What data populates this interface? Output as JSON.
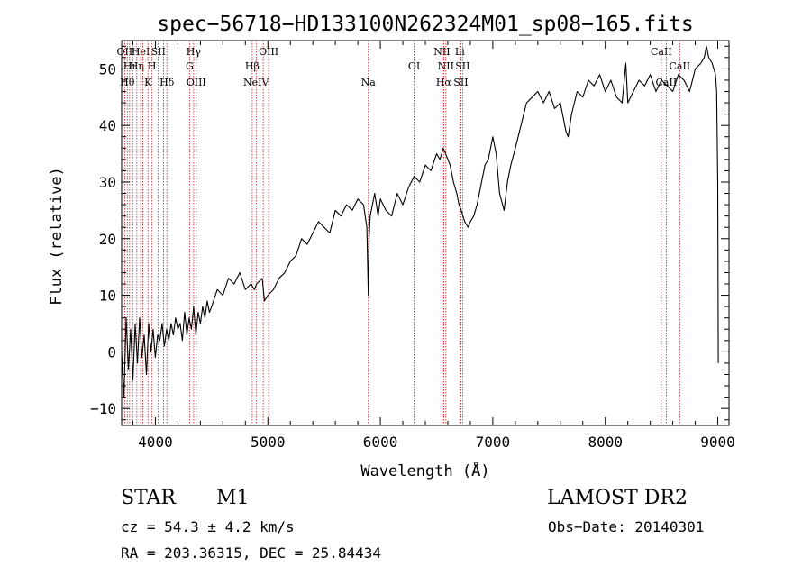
{
  "chart_data": {
    "type": "line",
    "title": "spec−56718−HD133100N262324M01_sp08−165.fits",
    "xlabel": "Wavelength (Å)",
    "ylabel": "Flux (relative)",
    "xlim": [
      3700,
      9100
    ],
    "ylim": [
      -13,
      55
    ],
    "xticks": [
      {
        "value": 4000,
        "label": "4000"
      },
      {
        "value": 5000,
        "label": "5000"
      },
      {
        "value": 6000,
        "label": "6000"
      },
      {
        "value": 7000,
        "label": "7000"
      },
      {
        "value": 8000,
        "label": "8000"
      },
      {
        "value": 9000,
        "label": "9000"
      }
    ],
    "yticks": [
      {
        "value": -10,
        "label": "−10"
      },
      {
        "value": 0,
        "label": "0"
      },
      {
        "value": 10,
        "label": "10"
      },
      {
        "value": 20,
        "label": "20"
      },
      {
        "value": 30,
        "label": "30"
      },
      {
        "value": 40,
        "label": "40"
      },
      {
        "value": 50,
        "label": "50"
      }
    ],
    "grid": false,
    "line_color": "#000000",
    "marker_color": "#8b1a1a",
    "series": [
      {
        "x": [
          3700,
          3720,
          3740,
          3760,
          3780,
          3800,
          3820,
          3840,
          3860,
          3880,
          3900,
          3920,
          3940,
          3960,
          3980,
          4000,
          4020,
          4040,
          4060,
          4080,
          4100,
          4120,
          4140,
          4160,
          4180,
          4200,
          4220,
          4240,
          4260,
          4280,
          4300,
          4320,
          4340,
          4360,
          4380,
          4400,
          4420,
          4440,
          4460,
          4480,
          4500,
          4550,
          4600,
          4650,
          4700,
          4750,
          4800,
          4850,
          4880,
          4900,
          4950,
          4970,
          5000,
          5050,
          5100,
          5150,
          5200,
          5250,
          5300,
          5350,
          5400,
          5450,
          5500,
          5550,
          5600,
          5650,
          5700,
          5750,
          5800,
          5850,
          5880,
          5893,
          5900,
          5910,
          5930,
          5950,
          5980,
          6000,
          6050,
          6100,
          6150,
          6200,
          6250,
          6300,
          6350,
          6400,
          6450,
          6500,
          6530,
          6560,
          6580,
          6600,
          6620,
          6650,
          6680,
          6700,
          6720,
          6750,
          6780,
          6800,
          6830,
          6860,
          6900,
          6930,
          6960,
          7000,
          7030,
          7060,
          7100,
          7130,
          7160,
          7200,
          7250,
          7300,
          7350,
          7400,
          7450,
          7500,
          7550,
          7600,
          7650,
          7670,
          7700,
          7750,
          7800,
          7850,
          7900,
          7950,
          8000,
          8050,
          8100,
          8150,
          8183,
          8200,
          8250,
          8300,
          8350,
          8400,
          8450,
          8500,
          8550,
          8600,
          8650,
          8700,
          8750,
          8800,
          8850,
          8880,
          8900,
          8920,
          8950,
          8980,
          8990,
          9000,
          9005
        ],
        "y": [
          0,
          -8,
          6,
          -3,
          4,
          -5,
          5,
          -2,
          6,
          -1,
          3,
          -4,
          5,
          0,
          4,
          -1,
          3,
          2,
          5,
          1,
          4,
          2,
          5,
          3,
          6,
          4,
          5,
          2,
          7,
          3,
          6,
          4,
          8,
          3,
          7,
          5,
          8,
          6,
          9,
          7,
          8,
          11,
          10,
          13,
          12,
          14,
          11,
          12,
          11,
          12,
          13,
          9,
          10,
          11,
          13,
          14,
          16,
          17,
          20,
          19,
          21,
          23,
          22,
          21,
          25,
          24,
          26,
          25,
          27,
          26,
          22,
          10,
          20,
          24,
          26,
          28,
          24,
          27,
          25,
          24,
          28,
          26,
          29,
          31,
          30,
          33,
          32,
          35,
          34,
          36,
          35,
          34,
          33,
          30,
          28,
          26,
          25,
          23,
          22,
          23,
          24,
          26,
          30,
          33,
          34,
          38,
          35,
          28,
          25,
          30,
          33,
          36,
          40,
          44,
          45,
          46,
          44,
          46,
          43,
          44,
          39,
          38,
          42,
          46,
          45,
          48,
          47,
          49,
          46,
          48,
          45,
          44,
          51,
          44,
          46,
          48,
          47,
          49,
          46,
          48,
          47,
          46,
          49,
          48,
          46,
          50,
          51,
          52,
          54,
          52,
          51,
          49,
          46,
          30,
          -2
        ]
      }
    ],
    "annotation_line_color": "#b22222",
    "line_markers": [
      {
        "x": 3727,
        "label": "OII",
        "row": 1
      },
      {
        "x": 3750,
        "label": "Hθ",
        "row": 3
      },
      {
        "x": 3771,
        "label": "Hι",
        "row": 2
      },
      {
        "x": 3798,
        "label": "",
        "row": 0
      },
      {
        "x": 3835,
        "label": "Hη",
        "row": 2
      },
      {
        "x": 3869,
        "label": "HeI",
        "row": 1
      },
      {
        "x": 3889,
        "label": "",
        "row": 0
      },
      {
        "x": 3934,
        "label": "K",
        "row": 3
      },
      {
        "x": 3970,
        "label": "H",
        "row": 2
      },
      {
        "x": 4026,
        "label": "SII",
        "row": 1
      },
      {
        "x": 4073,
        "label": "",
        "row": 0
      },
      {
        "x": 4102,
        "label": "Hδ",
        "row": 3
      },
      {
        "x": 4304,
        "label": "G",
        "row": 2
      },
      {
        "x": 4340,
        "label": "Hγ",
        "row": 1
      },
      {
        "x": 4363,
        "label": "OIII",
        "row": 3
      },
      {
        "x": 4861,
        "label": "Hβ",
        "row": 2
      },
      {
        "x": 4896,
        "label": "NeIV",
        "row": 3
      },
      {
        "x": 4959,
        "label": "",
        "row": 0
      },
      {
        "x": 5007,
        "label": "OIII",
        "row": 1
      },
      {
        "x": 5893,
        "label": "Na",
        "row": 3
      },
      {
        "x": 6300,
        "label": "OI",
        "row": 2
      },
      {
        "x": 6548,
        "label": "NII",
        "row": 1
      },
      {
        "x": 6563,
        "label": "Hα",
        "row": 3
      },
      {
        "x": 6583,
        "label": "NII",
        "row": 2
      },
      {
        "x": 6707,
        "label": "Li",
        "row": 1
      },
      {
        "x": 6716,
        "label": "SII",
        "row": 3
      },
      {
        "x": 6731,
        "label": "SII",
        "row": 2
      },
      {
        "x": 8498,
        "label": "CaII",
        "row": 1
      },
      {
        "x": 8542,
        "label": "CaII",
        "row": 3
      },
      {
        "x": 8662,
        "label": "CaII",
        "row": 2
      }
    ]
  },
  "info": {
    "class_label": "STAR",
    "subclass": "M1",
    "survey": "LAMOST DR2",
    "cz": "cz = 54.3 ± 4.2 km/s",
    "obs_date": "Obs−Date: 20140301",
    "coords": "RA = 203.36315, DEC =  25.84434"
  }
}
